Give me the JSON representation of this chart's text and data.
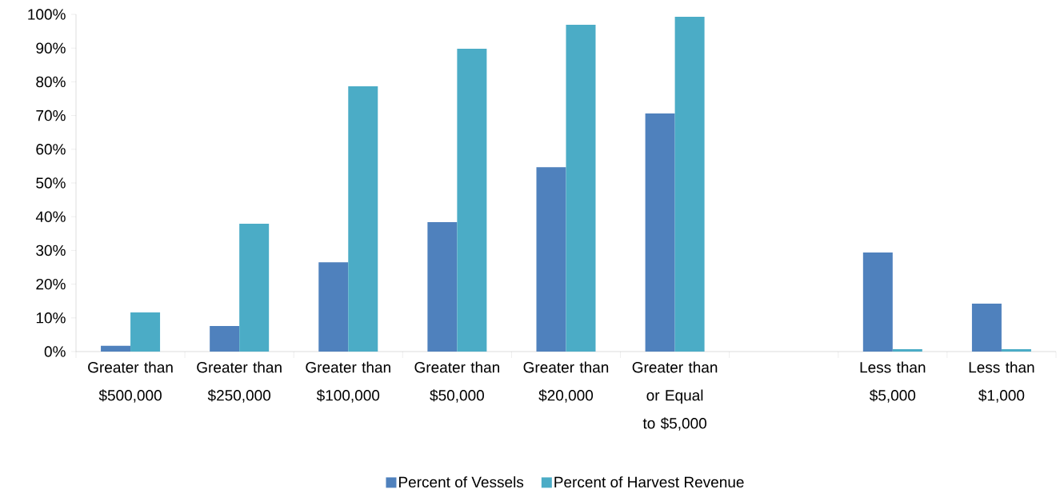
{
  "chart_data": {
    "type": "bar",
    "categories": [
      "Greater than $500,000",
      "Greater than $250,000",
      "Greater than $100,000",
      "Greater than $50,000",
      "Greater than $20,000",
      "Greater than or Equal to $5,000",
      null,
      "Less than $5,000",
      "Less than $1,000"
    ],
    "series": [
      {
        "name": "Percent of  Vessels",
        "color": "#4f81bd",
        "values": [
          1.7,
          7.6,
          26.5,
          38.4,
          54.7,
          70.6,
          null,
          29.4,
          14.2
        ]
      },
      {
        "name": "Percent of Harvest Revenue",
        "color": "#4bacc6",
        "values": [
          11.6,
          37.9,
          78.7,
          89.8,
          96.9,
          99.3,
          null,
          0.7,
          0.7
        ]
      }
    ],
    "ylim": [
      0,
      100
    ],
    "yticks": [
      {
        "value": 0,
        "label": "0%"
      },
      {
        "value": 10,
        "label": "10%"
      },
      {
        "value": 20,
        "label": "20%"
      },
      {
        "value": 30,
        "label": "30%"
      },
      {
        "value": 40,
        "label": "40%"
      },
      {
        "value": 50,
        "label": "50%"
      },
      {
        "value": 60,
        "label": "60%"
      },
      {
        "value": 70,
        "label": "70%"
      },
      {
        "value": 80,
        "label": "80%"
      },
      {
        "value": 90,
        "label": "90%"
      },
      {
        "value": 100,
        "label": "100%"
      }
    ],
    "grid": false,
    "legend": "bottom"
  }
}
